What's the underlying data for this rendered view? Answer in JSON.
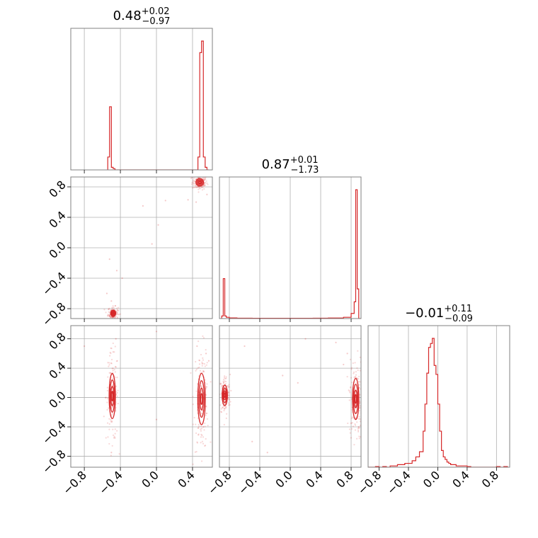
{
  "chart_data": {
    "type": "corner",
    "color": "#d62728",
    "parameters": 3,
    "titles": [
      {
        "value": "0.48",
        "plus": "+0.02",
        "minus": "−0.97"
      },
      {
        "value": "0.87",
        "plus": "+0.01",
        "minus": "−1.73"
      },
      {
        "value": "−0.01",
        "plus": "+0.11",
        "minus": "−0.09"
      }
    ],
    "ranges": [
      [
        -0.95,
        0.62
      ],
      [
        -0.93,
        0.93
      ],
      [
        -0.95,
        0.98
      ]
    ],
    "ticks": {
      "x0": {
        "values": [
          -0.8,
          -0.4,
          0.0,
          0.4
        ],
        "labels": [
          "−0.8",
          "−0.4",
          "0.0",
          "0.4"
        ]
      },
      "x1": {
        "values": [
          -0.8,
          -0.4,
          0.0,
          0.4,
          0.8
        ],
        "labels": [
          "−0.8",
          "−0.4",
          "0.0",
          "0.4",
          "0.8"
        ]
      },
      "x2": {
        "values": [
          -0.8,
          -0.4,
          0.0,
          0.4,
          0.8
        ],
        "labels": [
          "−0.8",
          "−0.4",
          "0.0",
          "0.4",
          "0.8"
        ]
      },
      "y1": {
        "values": [
          0.8,
          0.4,
          0.0,
          -0.4,
          -0.8
        ],
        "labels": [
          "0.8",
          "0.4",
          "0.0",
          "−0.4",
          "−0.8"
        ]
      },
      "y2": {
        "values": [
          0.8,
          0.4,
          0.0,
          -0.4,
          -0.8
        ],
        "labels": [
          "0.8",
          "0.4",
          "0.0",
          "−0.4",
          "−0.8"
        ]
      }
    },
    "hist_0": {
      "edges": [
        -0.54,
        -0.52,
        -0.5,
        -0.48,
        -0.46,
        -0.44,
        -0.42,
        0.46,
        0.48,
        0.5,
        0.52,
        0.54,
        0.56,
        0.58
      ],
      "values": [
        0.1,
        0.49,
        0.02,
        0.01,
        0.0,
        0.0,
        0.0,
        0.1,
        0.91,
        1.0,
        0.1,
        0.02,
        0.0
      ]
    },
    "hist_1": {
      "edges": [
        -0.9,
        -0.88,
        -0.86,
        -0.84,
        -0.8,
        -0.7,
        -0.5,
        -0.3,
        -0.1,
        0.1,
        0.3,
        0.5,
        0.7,
        0.8,
        0.84,
        0.86,
        0.88,
        0.9,
        0.93
      ],
      "values": [
        0.02,
        0.31,
        0.02,
        0.01,
        0.005,
        0.003,
        0.002,
        0.002,
        0.002,
        0.002,
        0.003,
        0.004,
        0.01,
        0.04,
        0.13,
        1.0,
        0.23,
        0.0
      ]
    },
    "hist_2": {
      "edges": [
        -0.95,
        -0.9,
        -0.85,
        -0.8,
        -0.75,
        -0.7,
        -0.65,
        -0.6,
        -0.55,
        -0.5,
        -0.45,
        -0.4,
        -0.35,
        -0.3,
        -0.25,
        -0.2,
        -0.175,
        -0.15,
        -0.125,
        -0.1,
        -0.075,
        -0.05,
        -0.025,
        0.0,
        0.025,
        0.05,
        0.075,
        0.1,
        0.125,
        0.15,
        0.175,
        0.2,
        0.25,
        0.3,
        0.35,
        0.4,
        0.45,
        0.5,
        0.55,
        0.6,
        0.65,
        0.7,
        0.75,
        0.8,
        0.85,
        0.9,
        0.95
      ],
      "values": [
        0.0,
        0.0,
        0.005,
        0.0,
        0.005,
        0.0,
        0.01,
        0.01,
        0.02,
        0.02,
        0.03,
        0.03,
        0.05,
        0.08,
        0.12,
        0.28,
        0.49,
        0.73,
        0.93,
        0.96,
        1.0,
        0.79,
        0.72,
        0.49,
        0.28,
        0.13,
        0.08,
        0.06,
        0.04,
        0.03,
        0.02,
        0.02,
        0.01,
        0.01,
        0.01,
        0.005,
        0.0,
        0.0,
        0.0,
        0.0,
        0.0,
        0.0,
        0.0,
        0.005,
        0.0,
        0.005
      ]
    },
    "scatter_1_0": {
      "clusters": [
        {
          "x": 0.48,
          "y": 0.86,
          "sx": 0.03,
          "sy": 0.035
        },
        {
          "x": -0.48,
          "y": -0.86,
          "sx": 0.02,
          "sy": 0.03
        }
      ],
      "outliers": [
        [
          0.02,
          0.3
        ],
        [
          -0.05,
          0.05
        ],
        [
          -0.52,
          -0.15
        ],
        [
          -0.38,
          -0.4
        ],
        [
          -0.55,
          -0.6
        ],
        [
          -0.5,
          -0.7
        ],
        [
          0.1,
          0.62
        ],
        [
          -0.15,
          0.55
        ],
        [
          0.35,
          0.63
        ],
        [
          -0.44,
          -0.3
        ],
        [
          0.56,
          0.7
        ],
        [
          0.44,
          0.6
        ]
      ]
    },
    "scatter_2_0": {
      "clusters": [
        {
          "x": -0.49,
          "y": 0.02,
          "sx": 0.025,
          "sy": 0.22
        },
        {
          "x": 0.5,
          "y": -0.02,
          "sx": 0.03,
          "sy": 0.25
        }
      ],
      "outliers": [
        [
          -0.8,
          0.7
        ],
        [
          0.0,
          0.9
        ],
        [
          -0.45,
          0.8
        ],
        [
          0.45,
          0.7
        ],
        [
          0.55,
          0.6
        ],
        [
          0.0,
          -0.3
        ],
        [
          -0.5,
          -0.75
        ],
        [
          -0.46,
          -0.55
        ],
        [
          0.52,
          -0.4
        ],
        [
          0.58,
          0.5
        ]
      ]
    },
    "scatter_2_1": {
      "clusters": [
        {
          "x": -0.86,
          "y": 0.03,
          "sx": 0.025,
          "sy": 0.1
        },
        {
          "x": 0.86,
          "y": -0.02,
          "sx": 0.03,
          "sy": 0.2
        }
      ],
      "outliers": [
        [
          -0.6,
          0.7
        ],
        [
          0.2,
          0.8
        ],
        [
          -0.1,
          0.3
        ],
        [
          0.6,
          0.75
        ],
        [
          0.75,
          0.6
        ],
        [
          -0.3,
          -0.75
        ],
        [
          -0.5,
          -0.6
        ],
        [
          0.1,
          0.2
        ],
        [
          0.8,
          -0.35
        ],
        [
          0.7,
          0.45
        ]
      ]
    }
  }
}
